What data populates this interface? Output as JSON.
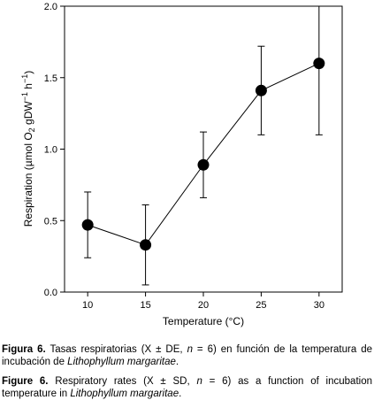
{
  "chart_data": {
    "type": "line",
    "x": [
      10,
      15,
      20,
      25,
      30
    ],
    "y": [
      0.47,
      0.33,
      0.89,
      1.41,
      1.6
    ],
    "sd": [
      0.23,
      0.28,
      0.23,
      0.31,
      0.5
    ],
    "xlabel": "Temperature (°C)",
    "ylabel": "Respiration (µmol O₂ gDW⁻¹ h⁻¹)",
    "xticks": [
      "10",
      "15",
      "20",
      "25",
      "30"
    ],
    "yticks": [
      "0.0",
      "0.5",
      "1.0",
      "1.5",
      "2.0"
    ],
    "xlim": [
      8,
      32
    ],
    "ylim": [
      0,
      2.0
    ],
    "grid": false,
    "marker": "filled-circle",
    "color": "#000000"
  },
  "caption_es": {
    "label": "Figura 6.",
    "text_before": " Tasas respiratorias (X ± DE, ",
    "n_symbol": "n",
    "text_middle": " = 6) en función de la temperatura de incubación de ",
    "species": "Lithophyllum margaritae",
    "text_end": "."
  },
  "caption_en": {
    "label": "Figure 6.",
    "text_before": " Respiratory rates (X ± SD, ",
    "n_symbol": "n",
    "text_middle": " = 6) as a function of incubation temperature in ",
    "species": "Lithophyllum margaritae",
    "text_end": "."
  }
}
